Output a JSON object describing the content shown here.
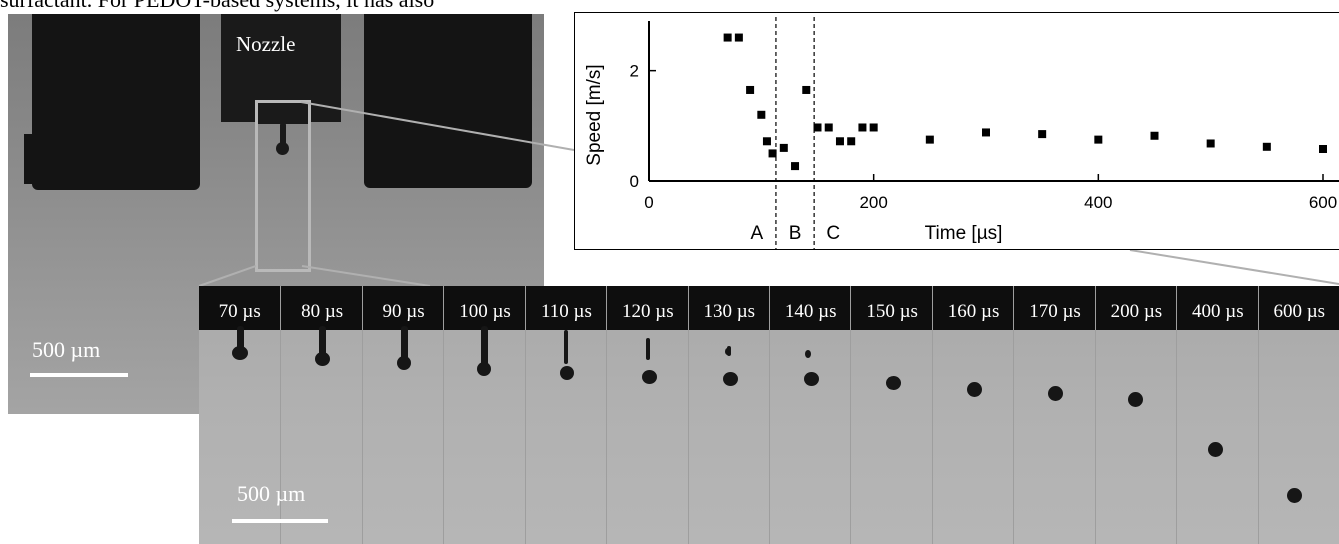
{
  "page_text": {
    "top_line": "surfactant. For PEDOT-based systems, it has also"
  },
  "photo": {
    "nozzle_label": "Nozzle",
    "scale_label": "500 µm"
  },
  "filmstrip": {
    "scale_label": "500 µm",
    "frames": [
      {
        "label": "70 µs"
      },
      {
        "label": "80 µs"
      },
      {
        "label": "90 µs"
      },
      {
        "label": "100 µs"
      },
      {
        "label": "110 µs"
      },
      {
        "label": "120 µs"
      },
      {
        "label": "130 µs"
      },
      {
        "label": "140 µs"
      },
      {
        "label": "150 µs"
      },
      {
        "label": "160 µs"
      },
      {
        "label": "170 µs"
      },
      {
        "label": "200 µs"
      },
      {
        "label": "400 µs"
      },
      {
        "label": "600 µs"
      }
    ]
  },
  "chart_data": {
    "type": "scatter",
    "title": "",
    "xlabel": "Time [µs]",
    "ylabel": "Speed [m/s]",
    "xlim": [
      0,
      600
    ],
    "ylim": [
      0,
      2.9
    ],
    "xticks": [
      0,
      200,
      400,
      600
    ],
    "yticks": [
      0,
      2
    ],
    "grid": false,
    "legend": "none",
    "regions": [
      {
        "label": "A",
        "start": 0,
        "end": 113
      },
      {
        "label": "B",
        "start": 113,
        "end": 147
      },
      {
        "label": "C",
        "start": 147,
        "end": 600
      }
    ],
    "series": [
      {
        "color": "#000000",
        "points": [
          [
            70,
            2.6
          ],
          [
            80,
            2.6
          ],
          [
            90,
            1.65
          ],
          [
            100,
            1.2
          ],
          [
            105,
            0.72
          ],
          [
            110,
            0.5
          ],
          [
            120,
            0.6
          ],
          [
            130,
            0.27
          ],
          [
            140,
            1.65
          ],
          [
            150,
            0.97
          ],
          [
            160,
            0.97
          ],
          [
            170,
            0.72
          ],
          [
            180,
            0.72
          ],
          [
            190,
            0.97
          ],
          [
            200,
            0.97
          ],
          [
            250,
            0.75
          ],
          [
            300,
            0.88
          ],
          [
            350,
            0.85
          ],
          [
            400,
            0.75
          ],
          [
            450,
            0.82
          ],
          [
            500,
            0.68
          ],
          [
            550,
            0.62
          ],
          [
            600,
            0.58
          ]
        ]
      }
    ]
  }
}
